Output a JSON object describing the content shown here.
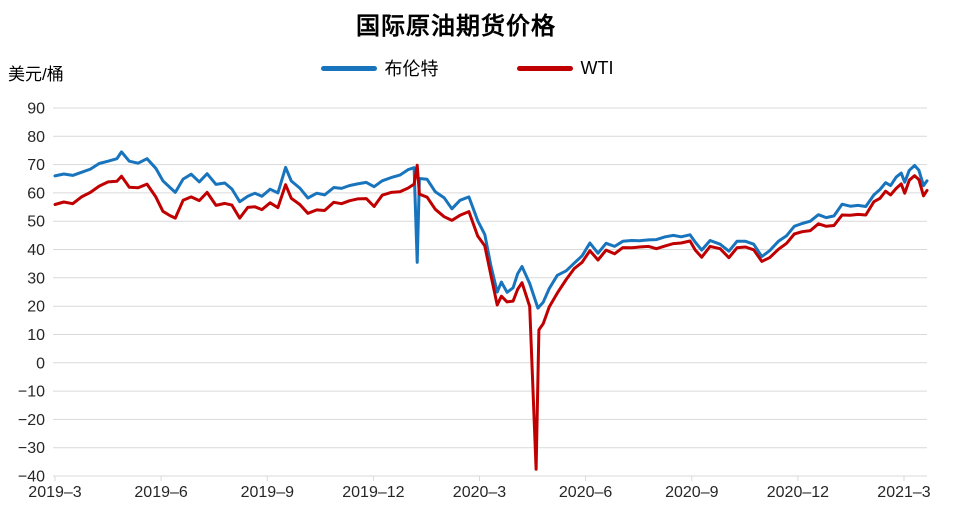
{
  "title": "国际原油期货价格",
  "y_unit_label": "美元/桶",
  "legend": [
    {
      "label": "布伦特",
      "color": "#1874BC"
    },
    {
      "label": "WTI",
      "color": "#C00000"
    }
  ],
  "colors": {
    "brent_line": "#1874BC",
    "wti_line": "#C00000",
    "gridline": "#D9D9D9",
    "tick_text": "#262626",
    "background": "#FFFFFF"
  },
  "chart_data": {
    "type": "line",
    "title": "国际原油期货价格",
    "ylabel": "美元/桶",
    "xlabel": "",
    "ylim": [
      -40,
      90
    ],
    "y_tick_step": 10,
    "xlim_months": [
      0,
      24.65
    ],
    "x_tick_positions_months": [
      0,
      3,
      6,
      9,
      12,
      15,
      18,
      21,
      24
    ],
    "x_tick_labels": [
      "2019-3",
      "2019-6",
      "2019-9",
      "2019-12",
      "2020-3",
      "2020-6",
      "2020-9",
      "2020-12",
      "2021-3"
    ],
    "grid": "horizontal",
    "legend_position": "top-center",
    "x_unit_note": "months since 2019-03",
    "series": [
      {
        "id": "brent",
        "name": "布伦特",
        "color": "#1874BC",
        "points": [
          [
            0.0,
            66.0
          ],
          [
            0.25,
            66.7
          ],
          [
            0.5,
            66.2
          ],
          [
            0.75,
            67.3
          ],
          [
            1.0,
            68.4
          ],
          [
            1.25,
            70.4
          ],
          [
            1.5,
            71.2
          ],
          [
            1.75,
            72.1
          ],
          [
            1.88,
            74.5
          ],
          [
            2.1,
            71.2
          ],
          [
            2.35,
            70.5
          ],
          [
            2.6,
            72.1
          ],
          [
            2.85,
            68.7
          ],
          [
            3.05,
            64.3
          ],
          [
            3.25,
            61.9
          ],
          [
            3.4,
            60.2
          ],
          [
            3.62,
            64.9
          ],
          [
            3.85,
            66.6
          ],
          [
            4.08,
            63.9
          ],
          [
            4.3,
            66.8
          ],
          [
            4.55,
            63.0
          ],
          [
            4.8,
            63.5
          ],
          [
            5.0,
            61.4
          ],
          [
            5.22,
            56.9
          ],
          [
            5.45,
            58.8
          ],
          [
            5.65,
            59.9
          ],
          [
            5.85,
            58.8
          ],
          [
            6.08,
            61.3
          ],
          [
            6.3,
            60.0
          ],
          [
            6.52,
            69.0
          ],
          [
            6.68,
            64.2
          ],
          [
            6.92,
            61.7
          ],
          [
            7.15,
            58.2
          ],
          [
            7.4,
            59.9
          ],
          [
            7.62,
            59.3
          ],
          [
            7.88,
            61.9
          ],
          [
            8.1,
            61.6
          ],
          [
            8.32,
            62.6
          ],
          [
            8.55,
            63.2
          ],
          [
            8.8,
            63.7
          ],
          [
            9.02,
            62.2
          ],
          [
            9.25,
            64.3
          ],
          [
            9.5,
            65.4
          ],
          [
            9.75,
            66.3
          ],
          [
            9.98,
            68.2
          ],
          [
            10.15,
            68.9
          ],
          [
            10.24,
            35.5
          ],
          [
            10.3,
            65.1
          ],
          [
            10.52,
            64.8
          ],
          [
            10.75,
            60.4
          ],
          [
            11.0,
            58.3
          ],
          [
            11.22,
            54.4
          ],
          [
            11.45,
            57.4
          ],
          [
            11.7,
            58.6
          ],
          [
            11.95,
            50.2
          ],
          [
            12.15,
            45.3
          ],
          [
            12.32,
            34.4
          ],
          [
            12.5,
            25.0
          ],
          [
            12.62,
            28.5
          ],
          [
            12.78,
            24.9
          ],
          [
            12.95,
            26.5
          ],
          [
            13.08,
            31.5
          ],
          [
            13.2,
            34.0
          ],
          [
            13.42,
            28.0
          ],
          [
            13.65,
            19.3
          ],
          [
            13.8,
            21.4
          ],
          [
            13.97,
            26.2
          ],
          [
            14.2,
            30.9
          ],
          [
            14.45,
            32.5
          ],
          [
            14.68,
            35.2
          ],
          [
            14.9,
            37.8
          ],
          [
            15.12,
            42.3
          ],
          [
            15.35,
            38.7
          ],
          [
            15.58,
            42.2
          ],
          [
            15.82,
            41.1
          ],
          [
            16.05,
            42.9
          ],
          [
            16.3,
            43.2
          ],
          [
            16.52,
            43.1
          ],
          [
            16.78,
            43.4
          ],
          [
            17.0,
            43.5
          ],
          [
            17.25,
            44.5
          ],
          [
            17.48,
            45.0
          ],
          [
            17.7,
            44.5
          ],
          [
            17.95,
            45.2
          ],
          [
            18.1,
            42.6
          ],
          [
            18.28,
            39.8
          ],
          [
            18.52,
            43.2
          ],
          [
            18.8,
            41.9
          ],
          [
            19.05,
            39.4
          ],
          [
            19.28,
            42.9
          ],
          [
            19.52,
            42.9
          ],
          [
            19.75,
            41.9
          ],
          [
            19.98,
            37.5
          ],
          [
            20.2,
            39.6
          ],
          [
            20.45,
            42.9
          ],
          [
            20.68,
            44.9
          ],
          [
            20.9,
            48.2
          ],
          [
            21.12,
            49.2
          ],
          [
            21.35,
            50.0
          ],
          [
            21.58,
            52.3
          ],
          [
            21.8,
            51.3
          ],
          [
            22.02,
            51.9
          ],
          [
            22.25,
            56.0
          ],
          [
            22.48,
            55.3
          ],
          [
            22.7,
            55.6
          ],
          [
            22.92,
            55.2
          ],
          [
            23.15,
            59.3
          ],
          [
            23.32,
            61.2
          ],
          [
            23.48,
            63.6
          ],
          [
            23.62,
            62.6
          ],
          [
            23.78,
            65.6
          ],
          [
            23.92,
            67.0
          ],
          [
            24.02,
            63.8
          ],
          [
            24.15,
            68.0
          ],
          [
            24.3,
            69.7
          ],
          [
            24.42,
            68.0
          ],
          [
            24.55,
            62.6
          ],
          [
            24.65,
            64.3
          ]
        ]
      },
      {
        "id": "wti",
        "name": "WTI",
        "color": "#C00000",
        "points": [
          [
            0.0,
            55.9
          ],
          [
            0.25,
            56.8
          ],
          [
            0.5,
            56.2
          ],
          [
            0.75,
            58.6
          ],
          [
            1.0,
            60.2
          ],
          [
            1.25,
            62.4
          ],
          [
            1.5,
            63.9
          ],
          [
            1.75,
            64.1
          ],
          [
            1.88,
            65.9
          ],
          [
            2.1,
            62.0
          ],
          [
            2.35,
            61.8
          ],
          [
            2.6,
            63.1
          ],
          [
            2.85,
            58.6
          ],
          [
            3.05,
            53.5
          ],
          [
            3.25,
            52.0
          ],
          [
            3.4,
            51.1
          ],
          [
            3.62,
            57.4
          ],
          [
            3.85,
            58.6
          ],
          [
            4.08,
            57.3
          ],
          [
            4.3,
            60.2
          ],
          [
            4.55,
            55.6
          ],
          [
            4.8,
            56.3
          ],
          [
            5.0,
            55.7
          ],
          [
            5.22,
            51.1
          ],
          [
            5.45,
            54.9
          ],
          [
            5.65,
            55.1
          ],
          [
            5.85,
            54.1
          ],
          [
            6.08,
            56.5
          ],
          [
            6.3,
            54.8
          ],
          [
            6.52,
            62.9
          ],
          [
            6.68,
            58.1
          ],
          [
            6.92,
            55.9
          ],
          [
            7.15,
            52.8
          ],
          [
            7.4,
            54.0
          ],
          [
            7.62,
            53.8
          ],
          [
            7.88,
            56.7
          ],
          [
            8.1,
            56.2
          ],
          [
            8.32,
            57.2
          ],
          [
            8.55,
            57.9
          ],
          [
            8.8,
            58.0
          ],
          [
            9.02,
            55.2
          ],
          [
            9.25,
            59.2
          ],
          [
            9.5,
            60.2
          ],
          [
            9.75,
            60.4
          ],
          [
            9.98,
            61.7
          ],
          [
            10.15,
            63.1
          ],
          [
            10.24,
            69.8
          ],
          [
            10.3,
            59.6
          ],
          [
            10.52,
            58.5
          ],
          [
            10.75,
            54.2
          ],
          [
            11.0,
            51.6
          ],
          [
            11.22,
            50.3
          ],
          [
            11.45,
            52.1
          ],
          [
            11.7,
            53.4
          ],
          [
            11.95,
            44.8
          ],
          [
            12.15,
            41.3
          ],
          [
            12.32,
            31.1
          ],
          [
            12.5,
            20.4
          ],
          [
            12.62,
            23.5
          ],
          [
            12.78,
            21.5
          ],
          [
            12.95,
            21.8
          ],
          [
            13.08,
            26.0
          ],
          [
            13.2,
            28.3
          ],
          [
            13.42,
            19.9
          ],
          [
            13.6,
            -37.6
          ],
          [
            13.68,
            11.6
          ],
          [
            13.8,
            13.8
          ],
          [
            13.97,
            19.7
          ],
          [
            14.2,
            24.6
          ],
          [
            14.45,
            29.4
          ],
          [
            14.68,
            33.3
          ],
          [
            14.9,
            35.5
          ],
          [
            15.12,
            39.6
          ],
          [
            15.35,
            36.3
          ],
          [
            15.58,
            39.8
          ],
          [
            15.82,
            38.5
          ],
          [
            16.05,
            40.7
          ],
          [
            16.3,
            40.6
          ],
          [
            16.52,
            40.9
          ],
          [
            16.78,
            41.1
          ],
          [
            17.0,
            40.3
          ],
          [
            17.25,
            41.3
          ],
          [
            17.48,
            42.1
          ],
          [
            17.7,
            42.3
          ],
          [
            17.95,
            43.0
          ],
          [
            18.1,
            39.8
          ],
          [
            18.28,
            37.3
          ],
          [
            18.52,
            41.1
          ],
          [
            18.8,
            40.3
          ],
          [
            19.05,
            37.1
          ],
          [
            19.28,
            40.6
          ],
          [
            19.52,
            40.9
          ],
          [
            19.75,
            39.9
          ],
          [
            19.98,
            35.8
          ],
          [
            20.2,
            37.1
          ],
          [
            20.45,
            40.1
          ],
          [
            20.68,
            42.2
          ],
          [
            20.9,
            45.5
          ],
          [
            21.12,
            46.3
          ],
          [
            21.35,
            46.7
          ],
          [
            21.58,
            49.1
          ],
          [
            21.8,
            48.2
          ],
          [
            22.02,
            48.5
          ],
          [
            22.25,
            52.2
          ],
          [
            22.48,
            52.1
          ],
          [
            22.7,
            52.4
          ],
          [
            22.92,
            52.2
          ],
          [
            23.15,
            56.9
          ],
          [
            23.32,
            58.1
          ],
          [
            23.48,
            60.6
          ],
          [
            23.62,
            59.3
          ],
          [
            23.78,
            61.6
          ],
          [
            23.92,
            63.2
          ],
          [
            24.02,
            59.9
          ],
          [
            24.15,
            64.5
          ],
          [
            24.3,
            66.1
          ],
          [
            24.42,
            64.7
          ],
          [
            24.55,
            59.0
          ],
          [
            24.65,
            60.9
          ]
        ]
      }
    ]
  }
}
